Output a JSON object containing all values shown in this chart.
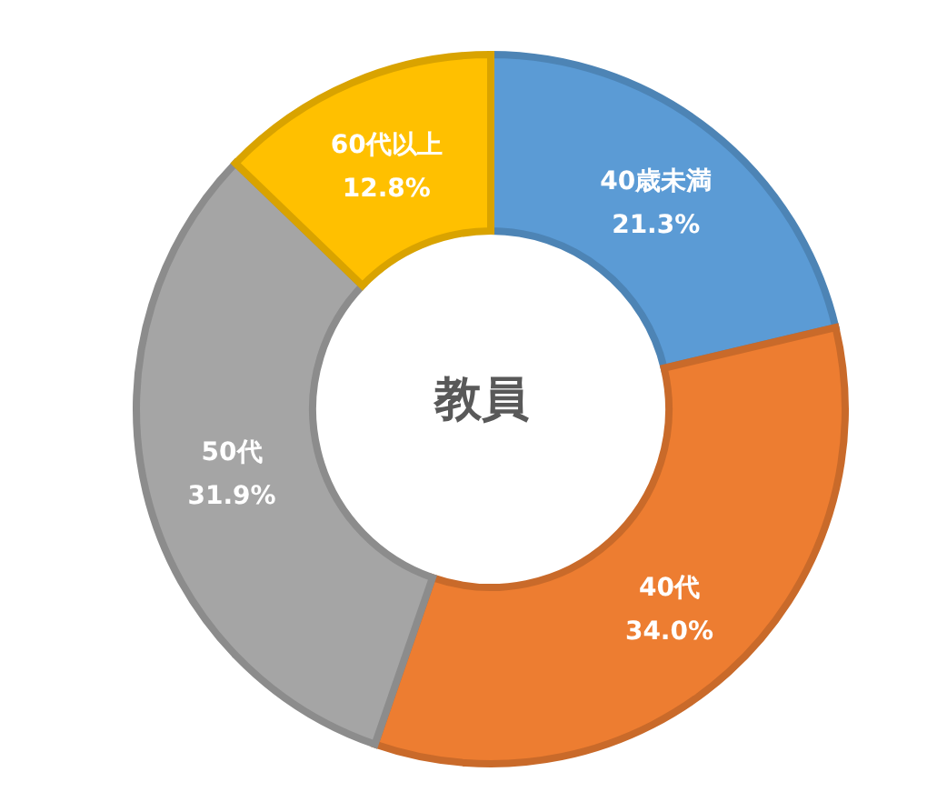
{
  "chart_data": {
    "type": "donut",
    "title": "教員",
    "categories": [
      "40歳未満",
      "40代",
      "50代",
      "60代以上"
    ],
    "values": [
      21.3,
      34.0,
      31.9,
      12.8
    ],
    "colors": [
      "#5b9bd5",
      "#ed7d31",
      "#a5a5a5",
      "#ffc000"
    ],
    "value_labels": [
      "21.3%",
      "34.0%",
      "31.9%",
      "12.8%"
    ],
    "legend": false
  }
}
